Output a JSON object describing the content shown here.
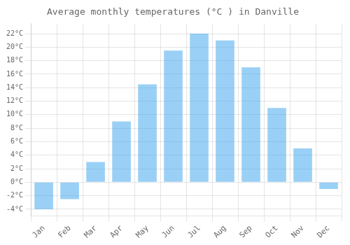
{
  "chart_data": {
    "type": "bar",
    "title": "Average monthly temperatures (°C ) in Danville",
    "categories": [
      "Jan",
      "Feb",
      "Mar",
      "Apr",
      "May",
      "Jun",
      "Jul",
      "Aug",
      "Sep",
      "Oct",
      "Nov",
      "Dec"
    ],
    "values": [
      -4.0,
      -2.5,
      3.0,
      9.0,
      14.5,
      19.5,
      22.0,
      21.0,
      17.0,
      11.0,
      5.0,
      -1.0
    ],
    "ylim": [
      -5,
      23.5
    ],
    "yticks": [
      {
        "value": -4,
        "label": "-4°C"
      },
      {
        "value": -2,
        "label": "-2°C"
      },
      {
        "value": 0,
        "label": "0°C"
      },
      {
        "value": 2,
        "label": "2°C"
      },
      {
        "value": 4,
        "label": "4°C"
      },
      {
        "value": 6,
        "label": "6°C"
      },
      {
        "value": 8,
        "label": "8°C"
      },
      {
        "value": 10,
        "label": "10°C"
      },
      {
        "value": 12,
        "label": "12°C"
      },
      {
        "value": 14,
        "label": "14°C"
      },
      {
        "value": 16,
        "label": "16°C"
      },
      {
        "value": 18,
        "label": "18°C"
      },
      {
        "value": 20,
        "label": "20°C"
      },
      {
        "value": 22,
        "label": "22°C"
      }
    ],
    "grid": true
  }
}
